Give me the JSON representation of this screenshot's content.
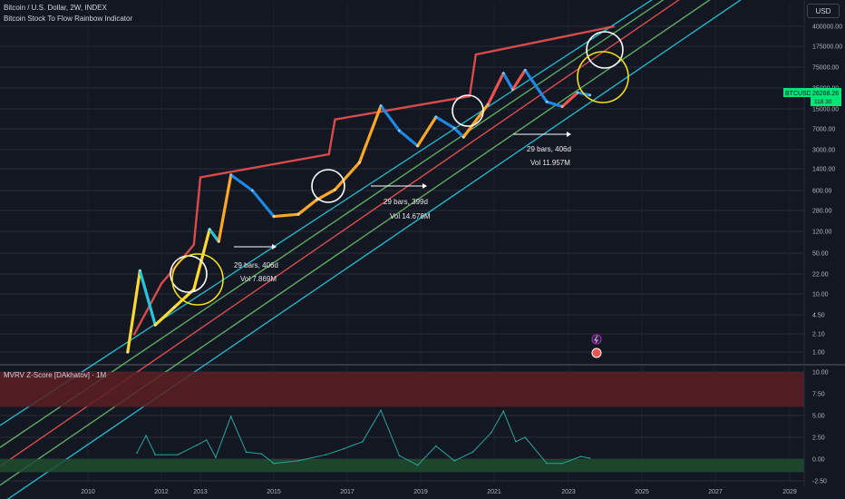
{
  "header": {
    "symbol_line": "Bitcoin / U.S. Dollar, 2W, INDEX",
    "indicator_line": "Bitcoin Stock To Flow Rainbow Indicator",
    "currency_button": "USD"
  },
  "price_badge": {
    "symbol": "BTCUSD",
    "price": "26268.26",
    "sub": "118 30"
  },
  "chart_data": [
    {
      "type": "line",
      "title": "Bitcoin / U.S. Dollar, 2W, INDEX",
      "scale": "log",
      "y_ticks": [
        "400000.00",
        "175000.00",
        "75000.00",
        "35000.00",
        "15000.00",
        "7000.00",
        "3000.00",
        "1400.00",
        "600.00",
        "280.00",
        "120.00",
        "50.00",
        "22.00",
        "10.00",
        "4.50",
        "2.10",
        "1.00"
      ],
      "x_ticks": [
        "2010",
        "2012",
        "2013",
        "2015",
        "2017",
        "2019",
        "2021",
        "2023",
        "2025",
        "2027",
        "2029"
      ],
      "series": [
        {
          "name": "",
          "color_mode": "rainbow",
          "x": [
            "2011-02",
            "2011-06",
            "2011-11",
            "2012-05",
            "2012-11",
            "2013-04",
            "2013-07",
            "2013-11",
            "2014-06",
            "2015-01",
            "2015-09",
            "2016-03",
            "2016-09",
            "2017-05",
            "2017-12",
            "2018-06",
            "2018-12",
            "2019-06",
            "2019-12",
            "2020-03",
            "2020-11",
            "2021-04",
            "2021-07",
            "2021-11",
            "2022-06",
            "2022-11",
            "2023-04",
            "2023-08"
          ],
          "values": [
            1,
            25,
            3,
            6,
            12,
            130,
            80,
            1100,
            600,
            220,
            240,
            420,
            620,
            1800,
            17000,
            6500,
            3500,
            11000,
            7200,
            5000,
            18000,
            60000,
            33000,
            67000,
            20000,
            16500,
            29000,
            26268
          ]
        },
        {
          "name": "",
          "color": "#f05050",
          "step": true,
          "x": [
            "2011-04",
            "2012-01",
            "2012-11",
            "2013-01",
            "2016-07",
            "2016-09",
            "2020-05",
            "2020-07",
            "2024-04"
          ],
          "values": [
            2,
            15,
            70,
            1000,
            2500,
            10000,
            25000,
            125000,
            400000
          ]
        }
      ],
      "bands": {
        "colors": [
          "#26c6da",
          "#66bb6a",
          "#ef5350",
          "#66bb6a",
          "#26c6da"
        ],
        "lines": [
          {
            "start": [
              "2010-09",
              1
            ],
            "end": [
              "2024-03",
              400000
            ]
          },
          {
            "start": [
              "2010-09",
              0.45
            ],
            "end": [
              "2024-03",
              280000
            ]
          },
          {
            "start": [
              "2010-09",
              0.22
            ],
            "end": [
              "2024-03",
              175000
            ]
          },
          {
            "start": [
              "2010-09",
              0.1
            ],
            "end": [
              "2024-03",
              75000
            ]
          },
          {
            "start": [
              "2010-09",
              0.045
            ],
            "end": [
              "2024-03",
              35000
            ]
          }
        ]
      },
      "annotations": [
        {
          "bars": "29 bars, 406d",
          "vol": "Vol 7.869M"
        },
        {
          "bars": "29 bars, 399d",
          "vol": "Vol 14.678M"
        },
        {
          "bars": "29 bars, 406d",
          "vol": "Vol 11.957M"
        }
      ],
      "grid": true,
      "legend": "none"
    },
    {
      "type": "line",
      "title": "MVRV Z-Score [DAkhatov] · 1M",
      "y_ticks": [
        "10.00",
        "7.50",
        "5.00",
        "2.50",
        "0.00",
        "-2.50"
      ],
      "ylim": [
        -2.5,
        10
      ],
      "zones": [
        {
          "from": 6,
          "to": 10,
          "color": "#5c1f22"
        },
        {
          "from": -1.5,
          "to": 0,
          "color": "#1f4d2e"
        }
      ],
      "series": [
        {
          "name": "",
          "color": "#26a69a",
          "x": [
            "2011-05",
            "2011-08",
            "2011-11",
            "2012-06",
            "2012-12",
            "2013-03",
            "2013-06",
            "2013-11",
            "2014-04",
            "2014-09",
            "2015-01",
            "2015-09",
            "2016-06",
            "2016-12",
            "2017-06",
            "2017-12",
            "2018-06",
            "2018-12",
            "2019-06",
            "2019-12",
            "2020-06",
            "2020-12",
            "2021-04",
            "2021-08",
            "2021-11",
            "2022-06",
            "2022-11",
            "2023-05",
            "2023-08"
          ],
          "values": [
            0.7,
            2.7,
            0.5,
            0.5,
            1.6,
            2.2,
            0.2,
            4.9,
            0.8,
            0.6,
            -0.5,
            -0.2,
            0.5,
            1.2,
            2.0,
            5.6,
            0.4,
            -0.7,
            1.5,
            -0.2,
            0.8,
            3.0,
            5.5,
            2.0,
            2.5,
            -0.5,
            -0.5,
            0.3,
            0.1
          ]
        }
      ]
    }
  ]
}
